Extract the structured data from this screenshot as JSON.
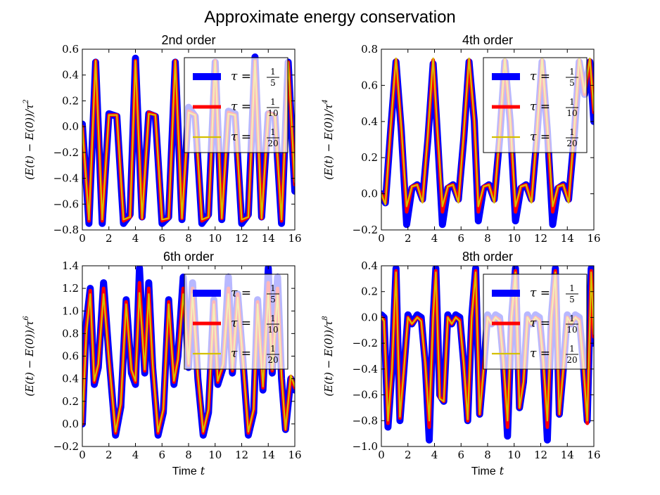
{
  "figure": {
    "title": "Approximate energy conservation",
    "xlabel_word": "Time",
    "xlabel_var": "t",
    "ylabel_prefix": "(E(t) − E(0))/τ",
    "legend_symbol": "τ =",
    "colors": {
      "blue": "#0000ff",
      "red": "#ff0000",
      "gold": "#d4c000",
      "axes": "#000000",
      "legend_edge": "#000000"
    }
  },
  "chart_data": [
    {
      "type": "line",
      "title": "2nd order",
      "xlabel": "",
      "ylabel_exponent": "2",
      "xlim": [
        0,
        16
      ],
      "ylim": [
        -0.8,
        0.6
      ],
      "xticks": [
        "0",
        "2",
        "4",
        "6",
        "8",
        "10",
        "12",
        "14",
        "16"
      ],
      "yticks": [
        "−0.8",
        "−0.6",
        "−0.4",
        "−0.2",
        "0.0",
        "0.2",
        "0.4",
        "0.6"
      ],
      "ytick_values": [
        -0.8,
        -0.6,
        -0.4,
        -0.2,
        0.0,
        0.2,
        0.4,
        0.6
      ],
      "legend": [
        {
          "label_num": "1",
          "label_den": "5",
          "color": "#0000ff"
        },
        {
          "label_num": "1",
          "label_den": "10",
          "color": "#ff0000"
        },
        {
          "label_num": "1",
          "label_den": "20",
          "color": "#d4c000"
        }
      ],
      "legend_position": "top-right",
      "x": [
        0,
        0.5,
        1.0,
        1.5,
        2.0,
        2.6,
        3.1,
        3.6,
        4.0,
        4.5,
        5.0,
        5.5,
        6.0,
        6.5,
        7.0,
        7.5,
        8.0,
        8.5,
        9.0,
        9.5,
        10.0,
        10.5,
        11.0,
        11.5,
        12.0,
        12.5,
        13.0,
        13.5,
        14.0,
        14.5,
        15.0,
        15.5,
        16.0
      ],
      "series": [
        {
          "name": "tau=1/5",
          "values": [
            0.02,
            -0.75,
            0.5,
            -0.75,
            0.1,
            0.08,
            -0.75,
            -0.68,
            0.53,
            -0.7,
            0.1,
            0.08,
            -0.75,
            -0.7,
            0.5,
            -0.72,
            0.15,
            0.08,
            -0.75,
            -0.68,
            0.5,
            -0.72,
            0.12,
            0.1,
            -0.75,
            -0.68,
            0.54,
            -0.7,
            0.1,
            0.08,
            -0.75,
            0.5,
            -0.5
          ]
        },
        {
          "name": "tau=1/10",
          "values": [
            0.0,
            -0.73,
            0.51,
            -0.73,
            0.09,
            0.09,
            -0.73,
            -0.7,
            0.51,
            -0.71,
            0.11,
            0.09,
            -0.73,
            -0.71,
            0.51,
            -0.71,
            0.12,
            0.09,
            -0.73,
            -0.7,
            0.51,
            -0.71,
            0.11,
            0.09,
            -0.73,
            -0.7,
            0.51,
            -0.71,
            0.11,
            0.09,
            -0.73,
            0.5,
            -0.45
          ]
        },
        {
          "name": "tau=1/20",
          "values": [
            0.0,
            -0.72,
            0.51,
            -0.72,
            0.09,
            0.09,
            -0.72,
            -0.7,
            0.51,
            -0.71,
            0.1,
            0.09,
            -0.72,
            -0.71,
            0.51,
            -0.71,
            0.11,
            0.09,
            -0.72,
            -0.7,
            0.51,
            -0.71,
            0.1,
            0.09,
            -0.72,
            -0.7,
            0.51,
            -0.71,
            0.1,
            0.09,
            -0.72,
            0.5,
            -0.43
          ]
        }
      ]
    },
    {
      "type": "line",
      "title": "4th order",
      "xlabel": "",
      "ylabel_exponent": "4",
      "xlim": [
        0,
        16
      ],
      "ylim": [
        -0.2,
        0.8
      ],
      "xticks": [
        "0",
        "2",
        "4",
        "6",
        "8",
        "10",
        "12",
        "14",
        "16"
      ],
      "yticks": [
        "−0.2",
        "0.0",
        "0.2",
        "0.4",
        "0.6",
        "0.8"
      ],
      "ytick_values": [
        -0.2,
        0.0,
        0.2,
        0.4,
        0.6,
        0.8
      ],
      "legend": [
        {
          "label_num": "1",
          "label_den": "5",
          "color": "#0000ff"
        },
        {
          "label_num": "1",
          "label_den": "10",
          "color": "#ff0000"
        },
        {
          "label_num": "1",
          "label_den": "20",
          "color": "#d4c000"
        }
      ],
      "legend_position": "top-right",
      "x": [
        0,
        0.3,
        0.7,
        1.1,
        1.5,
        1.9,
        2.3,
        2.7,
        3.1,
        3.5,
        3.9,
        4.2,
        4.6,
        5.0,
        5.4,
        5.8,
        6.2,
        6.6,
        7.0,
        7.3,
        7.7,
        8.1,
        8.5,
        8.9,
        9.3,
        9.7,
        10.1,
        10.5,
        10.9,
        11.3,
        11.7,
        12.1,
        12.5,
        12.9,
        13.3,
        13.7,
        14.1,
        14.5,
        14.9,
        15.3,
        15.7,
        16.0
      ],
      "series": [
        {
          "name": "tau=1/5",
          "values": [
            0.0,
            -0.05,
            0.35,
            0.73,
            0.35,
            -0.17,
            0.03,
            0.05,
            -0.03,
            0.3,
            0.72,
            0.35,
            -0.17,
            0.03,
            0.05,
            -0.03,
            0.3,
            0.73,
            0.4,
            -0.15,
            0.03,
            0.05,
            -0.03,
            0.3,
            0.73,
            0.4,
            -0.15,
            0.03,
            0.05,
            -0.03,
            0.3,
            0.73,
            0.35,
            -0.17,
            0.03,
            0.05,
            -0.03,
            0.3,
            0.73,
            0.55,
            0.73,
            0.4
          ]
        },
        {
          "name": "tau=1/10",
          "values": [
            0.0,
            -0.05,
            0.36,
            0.74,
            0.36,
            -0.1,
            0.04,
            0.05,
            -0.04,
            0.32,
            0.74,
            0.36,
            -0.1,
            0.04,
            0.05,
            -0.04,
            0.32,
            0.74,
            0.4,
            -0.1,
            0.04,
            0.05,
            -0.04,
            0.32,
            0.74,
            0.4,
            -0.1,
            0.04,
            0.05,
            -0.04,
            0.32,
            0.74,
            0.36,
            -0.1,
            0.04,
            0.05,
            -0.04,
            0.32,
            0.74,
            0.55,
            0.74,
            0.45
          ]
        },
        {
          "name": "tau=1/20",
          "values": [
            0.0,
            -0.06,
            0.37,
            0.75,
            0.37,
            -0.07,
            0.04,
            0.05,
            -0.05,
            0.33,
            0.75,
            0.37,
            -0.07,
            0.04,
            0.05,
            -0.05,
            0.33,
            0.75,
            0.41,
            -0.07,
            0.04,
            0.05,
            -0.05,
            0.33,
            0.75,
            0.41,
            -0.07,
            0.04,
            0.05,
            -0.05,
            0.33,
            0.75,
            0.37,
            -0.07,
            0.04,
            0.05,
            -0.05,
            0.33,
            0.75,
            0.56,
            0.75,
            0.46
          ]
        }
      ]
    },
    {
      "type": "line",
      "title": "6th order",
      "xlabel": "Time t",
      "ylabel_exponent": "6",
      "xlim": [
        0,
        16
      ],
      "ylim": [
        -0.2,
        1.4
      ],
      "xticks": [
        "0",
        "2",
        "4",
        "6",
        "8",
        "10",
        "12",
        "14",
        "16"
      ],
      "yticks": [
        "−0.2",
        "0.0",
        "0.2",
        "0.4",
        "0.6",
        "0.8",
        "1.0",
        "1.2",
        "1.4"
      ],
      "ytick_values": [
        -0.2,
        0.0,
        0.2,
        0.4,
        0.6,
        0.8,
        1.0,
        1.2,
        1.4
      ],
      "legend": [
        {
          "label_num": "1",
          "label_den": "5",
          "color": "#0000ff"
        },
        {
          "label_num": "1",
          "label_den": "10",
          "color": "#ff0000"
        },
        {
          "label_num": "1",
          "label_den": "20",
          "color": "#d4c000"
        }
      ],
      "legend_position": "top-right",
      "x": [
        0,
        0.3,
        0.6,
        0.9,
        1.2,
        1.6,
        2.0,
        2.5,
        2.9,
        3.3,
        3.7,
        4.0,
        4.3,
        4.7,
        5.0,
        5.3,
        5.7,
        6.1,
        6.5,
        6.9,
        7.2,
        7.6,
        8.0,
        8.3,
        8.7,
        9.1,
        9.5,
        9.9,
        10.2,
        10.6,
        11.0,
        11.3,
        11.7,
        12.1,
        12.5,
        12.9,
        13.2,
        13.6,
        14.0,
        14.3,
        14.7,
        15.0,
        15.3,
        15.7,
        16.0
      ],
      "series": [
        {
          "name": "tau=1/5",
          "values": [
            0.0,
            0.9,
            1.2,
            0.35,
            0.5,
            1.25,
            0.6,
            -0.1,
            0.15,
            1.1,
            0.45,
            0.35,
            1.38,
            0.45,
            1.25,
            0.5,
            -0.1,
            0.1,
            1.1,
            0.35,
            0.6,
            1.3,
            0.5,
            1.25,
            0.4,
            -0.1,
            0.1,
            1.1,
            0.35,
            0.5,
            1.3,
            0.45,
            1.15,
            0.55,
            -0.1,
            0.1,
            1.1,
            0.3,
            1.38,
            0.45,
            1.3,
            0.4,
            -0.05,
            0.4,
            0.3
          ]
        },
        {
          "name": "tau=1/10",
          "values": [
            0.0,
            0.85,
            1.18,
            0.37,
            0.52,
            1.2,
            0.58,
            -0.08,
            0.17,
            1.08,
            0.47,
            0.37,
            1.25,
            0.47,
            1.2,
            0.52,
            -0.08,
            0.12,
            1.08,
            0.37,
            0.58,
            1.2,
            0.52,
            1.2,
            0.42,
            -0.08,
            0.12,
            1.08,
            0.37,
            0.52,
            1.2,
            0.47,
            1.15,
            0.55,
            -0.08,
            0.12,
            1.08,
            0.32,
            1.25,
            0.47,
            1.2,
            0.42,
            -0.05,
            0.42,
            0.32
          ]
        },
        {
          "name": "tau=1/20",
          "values": [
            0.0,
            0.8,
            1.15,
            0.38,
            0.53,
            1.15,
            0.57,
            -0.07,
            0.18,
            1.06,
            0.48,
            0.38,
            1.16,
            0.48,
            1.15,
            0.53,
            -0.07,
            0.13,
            1.06,
            0.38,
            0.57,
            1.15,
            0.53,
            1.15,
            0.43,
            -0.07,
            0.13,
            1.06,
            0.38,
            0.53,
            1.15,
            0.48,
            1.12,
            0.55,
            -0.07,
            0.13,
            1.06,
            0.33,
            1.16,
            0.48,
            1.15,
            0.43,
            -0.05,
            0.43,
            0.33
          ]
        }
      ]
    },
    {
      "type": "line",
      "title": "8th order",
      "xlabel": "Time t",
      "ylabel_exponent": "8",
      "xlim": [
        0,
        16
      ],
      "ylim": [
        -1.0,
        0.4
      ],
      "xticks": [
        "0",
        "2",
        "4",
        "6",
        "8",
        "10",
        "12",
        "14",
        "16"
      ],
      "yticks": [
        "−1.0",
        "−0.8",
        "−0.6",
        "−0.4",
        "−0.2",
        "0.0",
        "0.2",
        "0.4"
      ],
      "ytick_values": [
        -1.0,
        -0.8,
        -0.6,
        -0.4,
        -0.2,
        0.0,
        0.2,
        0.4
      ],
      "legend": [
        {
          "label_num": "1",
          "label_den": "5",
          "color": "#0000ff"
        },
        {
          "label_num": "1",
          "label_den": "10",
          "color": "#ff0000"
        },
        {
          "label_num": "1",
          "label_den": "20",
          "color": "#d4c000"
        }
      ],
      "legend_position": "top-right",
      "x": [
        0,
        0.2,
        0.5,
        0.8,
        1.1,
        1.4,
        1.7,
        2.0,
        2.3,
        2.7,
        3.0,
        3.3,
        3.6,
        3.9,
        4.1,
        4.4,
        4.7,
        5.0,
        5.3,
        5.6,
        5.9,
        6.2,
        6.5,
        6.8,
        7.1,
        7.4,
        7.7,
        8.0,
        8.3,
        8.6,
        8.9,
        9.2,
        9.5,
        9.8,
        10.1,
        10.4,
        10.7,
        11.0,
        11.3,
        11.6,
        11.9,
        12.2,
        12.5,
        12.8,
        13.1,
        13.4,
        13.7,
        14.0,
        14.3,
        14.6,
        14.9,
        15.2,
        15.5,
        15.8,
        16.0
      ],
      "series": [
        {
          "name": "tau=1/5",
          "values": [
            0.02,
            0.0,
            -0.85,
            -0.4,
            0.38,
            -0.8,
            -0.4,
            0.02,
            -0.05,
            0.02,
            0.0,
            -0.35,
            -0.95,
            0.0,
            0.38,
            -0.6,
            -0.65,
            0.02,
            -0.05,
            0.02,
            0.0,
            -0.35,
            -0.8,
            0.0,
            0.38,
            -0.75,
            -0.4,
            0.02,
            -0.05,
            0.02,
            0.0,
            -0.35,
            -0.92,
            0.0,
            0.38,
            -0.7,
            -0.5,
            0.02,
            -0.05,
            0.02,
            0.0,
            -0.35,
            -0.95,
            0.0,
            0.38,
            -0.75,
            -0.4,
            0.02,
            -0.05,
            0.02,
            0.0,
            -0.35,
            -0.8,
            0.38,
            -0.2
          ]
        },
        {
          "name": "tau=1/10",
          "values": [
            0.0,
            -0.02,
            -0.82,
            -0.4,
            0.36,
            -0.78,
            -0.4,
            0.0,
            -0.05,
            0.0,
            -0.02,
            -0.35,
            -0.85,
            0.0,
            0.36,
            -0.62,
            -0.65,
            0.0,
            -0.05,
            0.0,
            -0.02,
            -0.35,
            -0.8,
            0.0,
            0.36,
            -0.75,
            -0.4,
            0.0,
            -0.05,
            0.0,
            -0.02,
            -0.35,
            -0.85,
            0.0,
            0.36,
            -0.7,
            -0.5,
            0.0,
            -0.05,
            0.0,
            -0.02,
            -0.35,
            -0.85,
            0.0,
            0.36,
            -0.75,
            -0.4,
            0.0,
            -0.05,
            0.0,
            -0.02,
            -0.35,
            -0.82,
            0.36,
            -0.15
          ]
        },
        {
          "name": "tau=1/20",
          "values": [
            0.0,
            -0.03,
            -0.8,
            -0.4,
            0.35,
            -0.77,
            -0.4,
            0.0,
            -0.05,
            0.0,
            -0.03,
            -0.35,
            -0.8,
            0.0,
            0.35,
            -0.63,
            -0.65,
            0.0,
            -0.05,
            0.0,
            -0.03,
            -0.35,
            -0.79,
            0.0,
            0.35,
            -0.75,
            -0.4,
            0.0,
            -0.05,
            0.0,
            -0.03,
            -0.35,
            -0.8,
            0.0,
            0.35,
            -0.7,
            -0.5,
            0.0,
            -0.05,
            0.0,
            -0.03,
            -0.35,
            -0.8,
            0.0,
            0.35,
            -0.75,
            -0.4,
            0.0,
            -0.05,
            0.0,
            -0.03,
            -0.35,
            -0.8,
            0.35,
            -0.13
          ]
        }
      ]
    }
  ]
}
